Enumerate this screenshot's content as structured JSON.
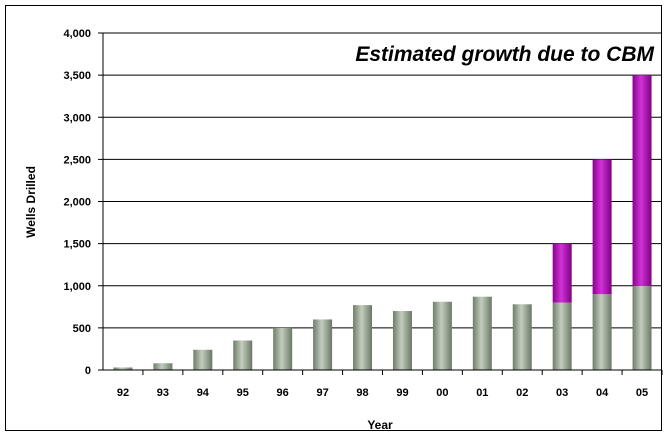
{
  "chart_data": {
    "type": "bar",
    "stacked": true,
    "categories": [
      "92",
      "93",
      "94",
      "95",
      "96",
      "97",
      "98",
      "99",
      "00",
      "01",
      "02",
      "03",
      "04",
      "05"
    ],
    "series": [
      {
        "values": [
          30,
          80,
          240,
          350,
          500,
          600,
          770,
          700,
          810,
          870,
          780,
          800,
          900,
          1000
        ],
        "color": "#8f9e8a"
      },
      {
        "values": [
          0,
          0,
          0,
          0,
          0,
          0,
          0,
          0,
          0,
          0,
          0,
          700,
          1600,
          2500
        ],
        "color": "#b000b8"
      }
    ],
    "title": "",
    "annotation": "Estimated growth due to CBM",
    "xlabel": "Year",
    "ylabel": "Wells Drilled",
    "ylim": [
      0,
      4000
    ],
    "yticks": [
      "0",
      "500",
      "1,000",
      "1,500",
      "2,000",
      "2,500",
      "3,000",
      "3,500",
      "4,000"
    ],
    "ytick_values": [
      0,
      500,
      1000,
      1500,
      2000,
      2500,
      3000,
      3500,
      4000
    ],
    "grid": true,
    "legend": "none"
  }
}
